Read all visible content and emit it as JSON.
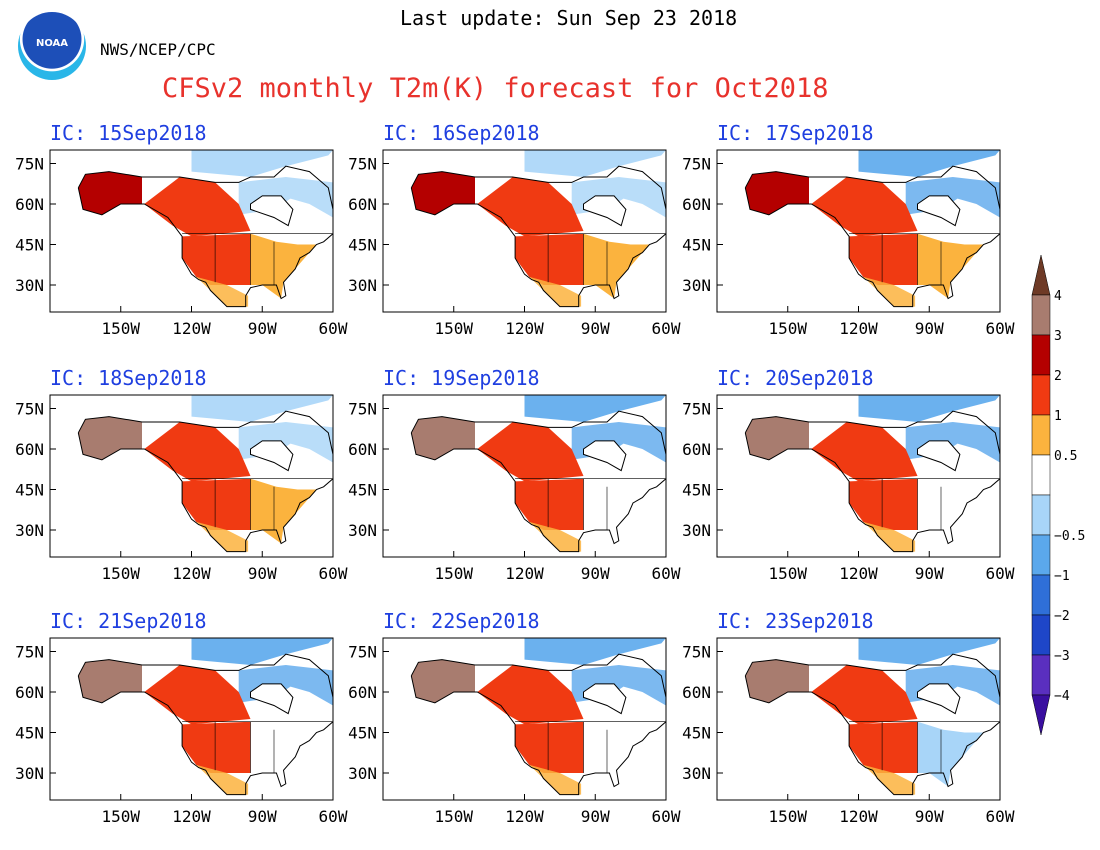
{
  "header": {
    "last_update": "Last update: Sun Sep 23 2018",
    "agency": "NWS/NCEP/CPC",
    "logo_text": "NOAA",
    "title": "CFSv2 monthly T2m(K) forecast for Oct2018"
  },
  "map": {
    "lat_ticks": [
      "75N",
      "60N",
      "45N",
      "30N"
    ],
    "lon_ticks": [
      "150W",
      "120W",
      "90W",
      "60W"
    ],
    "region": "North America",
    "panels": [
      {
        "label": "IC: 15Sep2018",
        "alaska": "dark_red",
        "west": "red",
        "east": "orange",
        "arctic_east": "light_blue",
        "alaska_class": 2.5
      },
      {
        "label": "IC: 16Sep2018",
        "alaska": "dark_red",
        "west": "red",
        "east": "orange",
        "arctic_east": "light_blue",
        "alaska_class": 2.5
      },
      {
        "label": "IC: 17Sep2018",
        "alaska": "dark_red",
        "west": "red",
        "east": "orange",
        "arctic_east": "blue",
        "alaska_class": 2.5
      },
      {
        "label": "IC: 18Sep2018",
        "alaska": "brown",
        "west": "red",
        "east": "orange",
        "arctic_east": "light_blue",
        "alaska_class": 3.5
      },
      {
        "label": "IC: 19Sep2018",
        "alaska": "brown",
        "west": "red",
        "east": "white",
        "arctic_east": "blue",
        "alaska_class": 3.5
      },
      {
        "label": "IC: 20Sep2018",
        "alaska": "brown",
        "west": "red",
        "east": "white",
        "arctic_east": "blue",
        "alaska_class": 3.5
      },
      {
        "label": "IC: 21Sep2018",
        "alaska": "brown",
        "west": "red",
        "east": "white",
        "arctic_east": "blue",
        "alaska_class": 3.5
      },
      {
        "label": "IC: 22Sep2018",
        "alaska": "brown",
        "west": "red",
        "east": "white",
        "arctic_east": "blue",
        "alaska_class": 3.5
      },
      {
        "label": "IC: 23Sep2018",
        "alaska": "brown",
        "west": "red",
        "east": "light_blue",
        "arctic_east": "blue",
        "alaska_class": 3.5
      }
    ]
  },
  "colorbar": {
    "labels": [
      "4",
      "3",
      "2",
      "1",
      "0.5",
      "−0.5",
      "−1",
      "−2",
      "−3",
      "−4"
    ],
    "colors": [
      "#6e3a26",
      "#a87c6f",
      "#b40000",
      "#f03a12",
      "#fbb33e",
      "#ffffff",
      "#a8d5f8",
      "#5ba8ec",
      "#2f6fd8",
      "#1e46c8",
      "#5a2fbf",
      "#3a0fa0"
    ]
  },
  "palette": {
    "brown": "#a87c6f",
    "dark_red": "#b40000",
    "red": "#f03a12",
    "orange": "#fbb33e",
    "white": "#ffffff",
    "light_blue": "#a8d5f8",
    "blue": "#5ba8ec",
    "label_blue": "#1f3fe0",
    "title_red": "#e8322c"
  }
}
